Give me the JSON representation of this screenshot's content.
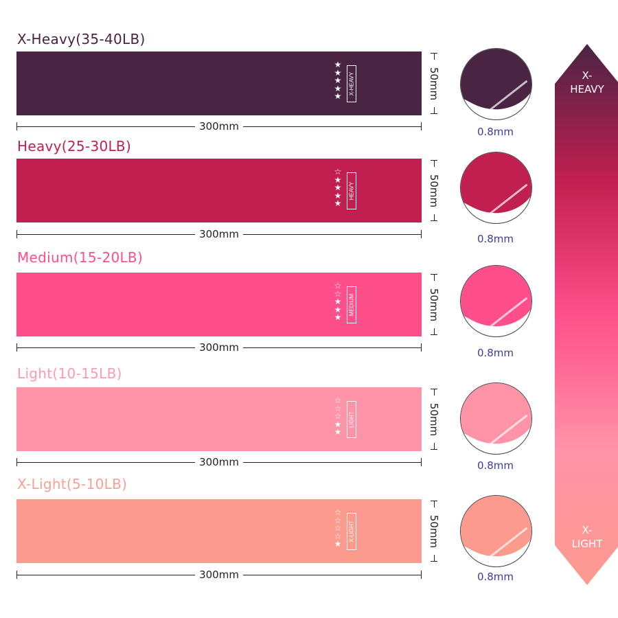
{
  "bands": [
    {
      "title": "X-Heavy(35-40LB)",
      "tag": "X-HEAVY",
      "stars_filled": 5,
      "stars_total": 5,
      "length": "300mm",
      "width": "50mm",
      "thickness": "0.8mm",
      "color": "#4a2443",
      "title_color": "#4a2443"
    },
    {
      "title": "Heavy(25-30LB)",
      "tag": "HEAVY",
      "stars_filled": 4,
      "stars_total": 5,
      "length": "300mm",
      "width": "50mm",
      "thickness": "0.8mm",
      "color": "#c11f50",
      "title_color": "#c11f50"
    },
    {
      "title": "Medium(15-20LB)",
      "tag": "MEDIUM",
      "stars_filled": 3,
      "stars_total": 5,
      "length": "300mm",
      "width": "50mm",
      "thickness": "0.8mm",
      "color": "#ff4f8a",
      "title_color": "#ff4f8a"
    },
    {
      "title": "Light(10-15LB)",
      "tag": "LIGHT",
      "stars_filled": 2,
      "stars_total": 5,
      "length": "300mm",
      "width": "50mm",
      "thickness": "0.8mm",
      "color": "#ff93a8",
      "title_color": "#ff9ab0"
    },
    {
      "title": "X-Light(5-10LB)",
      "tag": "X-LIGHT",
      "stars_filled": 1,
      "stars_total": 5,
      "length": "300mm",
      "width": "50mm",
      "thickness": "0.8mm",
      "color": "#fc9a8e",
      "title_color": "#fca091"
    }
  ],
  "scale_arrow": {
    "top_label_1": "X-",
    "top_label_2": "HEAVY",
    "bottom_label_1": "X-",
    "bottom_label_2": "LIGHT",
    "gradient": [
      "#4a2443",
      "#c11f50",
      "#ff4f8a",
      "#ff93a8",
      "#fc9a8e"
    ]
  }
}
